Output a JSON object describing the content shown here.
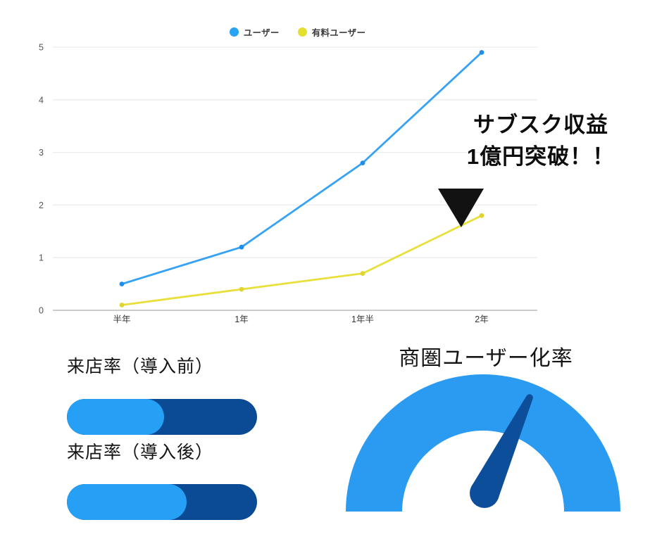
{
  "colors": {
    "line_blue": "#36A2F5",
    "line_blue_marker": "#1E8FE8",
    "line_yellow": "#E9DF3A",
    "line_yellow_marker": "#DfD430",
    "grid": "#EEEEEE",
    "axis": "#CCCCCC",
    "tick_text": "#555555",
    "xlabel_text": "#333333",
    "legend_blue": "#29A3F4",
    "legend_yellow": "#E5DF30",
    "progress_light_blue": "#25A0F4",
    "progress_dark_blue": "#0B4A94",
    "gauge_arc_blue": "#2B9BF2",
    "gauge_needle_blue": "#0D4E9A",
    "annotation_black": "#121212"
  },
  "legend": {
    "items": [
      {
        "label": "ユーザー",
        "color": "#29A3F4"
      },
      {
        "label": "有料ユーザー",
        "color": "#E5DF30"
      }
    ]
  },
  "annotation": {
    "line1": "サブスク収益",
    "line2": "1億円突破！！"
  },
  "visit_rate": {
    "before_label": "来店率（導入前）",
    "after_label": "来店率（導入後）"
  },
  "gauge": {
    "title": "商圏ユーザー化率"
  },
  "chart_data": [
    {
      "type": "line",
      "title": "",
      "categories": [
        "半年",
        "1年",
        "1年半",
        "2年"
      ],
      "series": [
        {
          "name": "ユーザー",
          "color": "#36A2F5",
          "marker_color": "#1E8FE8",
          "values": [
            0.5,
            1.2,
            2.8,
            4.9
          ]
        },
        {
          "name": "有料ユーザー",
          "color": "#E9DF3A",
          "marker_color": "#DFD430",
          "values": [
            0.1,
            0.4,
            0.7,
            1.8
          ]
        }
      ],
      "xlabel": "",
      "ylabel": "",
      "ylim": [
        0,
        5
      ],
      "yticks": [
        0,
        1,
        2,
        3,
        4,
        5
      ],
      "grid": true,
      "legend_position": "top",
      "annotation_text": "サブスク収益 1億円突破！！",
      "annotation_target": {
        "series": "有料ユーザー",
        "category": "2年"
      }
    },
    {
      "type": "bar",
      "orientation": "horizontal-progress",
      "categories": [
        "来店率（導入前）",
        "来店率（導入後）"
      ],
      "values": [
        51,
        63
      ],
      "max": 100,
      "title": "来店率"
    },
    {
      "type": "gauge",
      "title": "商圏ユーザー化率",
      "value": 64,
      "max": 100
    }
  ]
}
